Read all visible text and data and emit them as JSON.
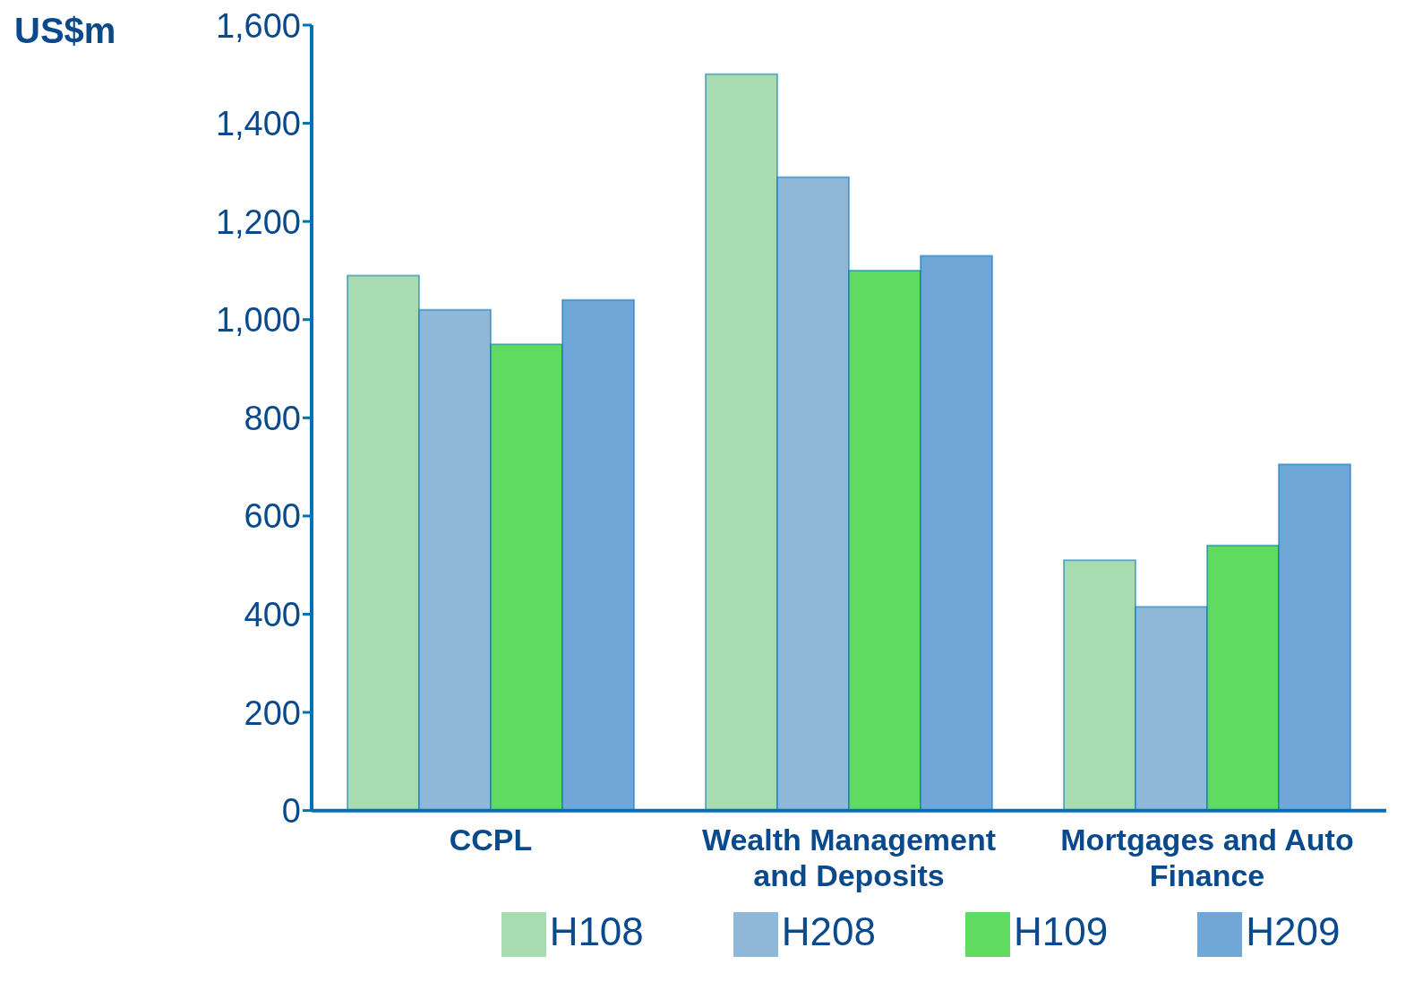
{
  "chart_data": {
    "type": "bar",
    "ylabel": "US$m",
    "categories": [
      "CCPL",
      "Wealth Management and Deposits",
      "Mortgages and Auto Finance"
    ],
    "series": [
      {
        "name": "H108",
        "color": "#a8dcb0",
        "values": [
          1090,
          1500,
          510
        ]
      },
      {
        "name": "H208",
        "color": "#8fb8d8",
        "values": [
          1020,
          1290,
          415
        ]
      },
      {
        "name": "H109",
        "color": "#5fdc5f",
        "values": [
          950,
          1100,
          540
        ]
      },
      {
        "name": "H209",
        "color": "#6fa8d8",
        "values": [
          1040,
          1130,
          705
        ]
      }
    ],
    "ylim": [
      0,
      1600
    ],
    "yticks": [
      0,
      200,
      400,
      600,
      800,
      {
        "value": 1000,
        "label": "1,000"
      },
      {
        "value": 1200,
        "label": "1,200"
      },
      {
        "value": 1400,
        "label": "1,400"
      },
      {
        "value": 1600,
        "label": "1,600"
      }
    ],
    "grid": false,
    "legend": "bottom"
  }
}
